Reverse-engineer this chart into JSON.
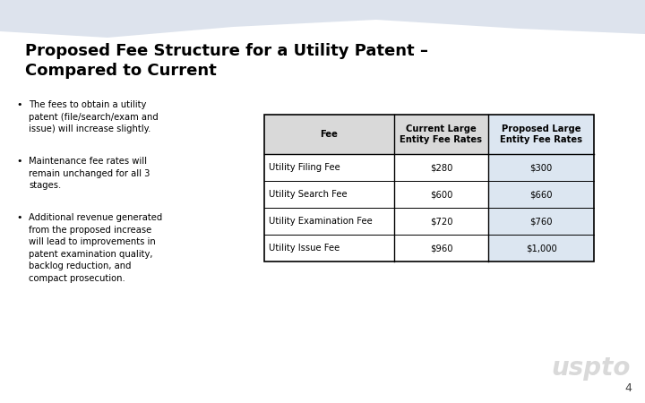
{
  "title_line1": "Proposed Fee Structure for a Utility Patent –",
  "title_line2": "Compared to Current",
  "bullets": [
    "The fees to obtain a utility\npatent (file/search/exam and\nissue) will increase slightly.",
    "Maintenance fee rates will\nremain unchanged for all 3\nstages.",
    "Additional revenue generated\nfrom the proposed increase\nwill lead to improvements in\npatent examination quality,\nbacklog reduction, and\ncompact prosecution."
  ],
  "table_headers": [
    "Fee",
    "Current Large\nEntity Fee Rates",
    "Proposed Large\nEntity Fee Rates"
  ],
  "table_rows": [
    [
      "Utility Filing Fee",
      "$280",
      "$300"
    ],
    [
      "Utility Search Fee",
      "$600",
      "$660"
    ],
    [
      "Utility Examination Fee",
      "$720",
      "$760"
    ],
    [
      "Utility Issue Fee",
      "$960",
      "$1,000"
    ]
  ],
  "slide_bg": "#ffffff",
  "header_bg": "#d9d9d9",
  "proposed_col_bg": "#dce6f1",
  "row_bg": "#ffffff",
  "wave_color": "#dde3ed",
  "title_color": "#000000",
  "text_color": "#000000",
  "table_border_color": "#000000",
  "page_number": "4",
  "logo_text": "uspto",
  "logo_color": "#bbbbbb"
}
